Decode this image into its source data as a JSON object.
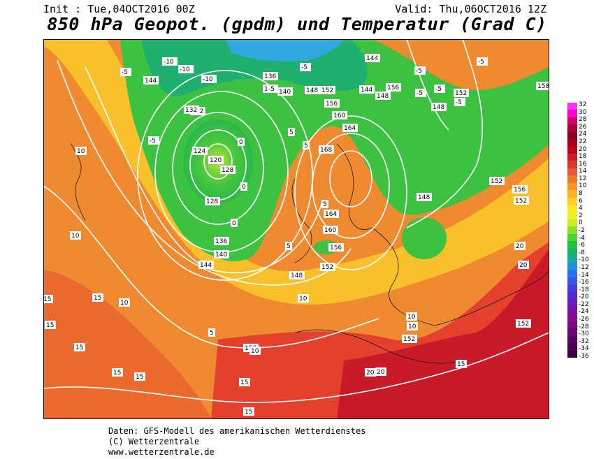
{
  "header": {
    "init": "Init : Tue,04OCT2016 00Z",
    "valid": "Valid: Thu,06OCT2016 12Z",
    "title": "850 hPa Geopot. (gpdm) und Temperatur (Grad C)"
  },
  "colorbar": {
    "labels": [
      "32",
      "30",
      "28",
      "26",
      "24",
      "22",
      "20",
      "18",
      "16",
      "14",
      "12",
      "10",
      "8",
      "6",
      "4",
      "2",
      "0",
      "-2",
      "-4",
      "-6",
      "-8",
      "-10",
      "-12",
      "-14",
      "-16",
      "-18",
      "-20",
      "-22",
      "-24",
      "-26",
      "-28",
      "-30",
      "-32",
      "-34",
      "-36"
    ],
    "colors": [
      "#ff33ff",
      "#ff00cc",
      "#d4006e",
      "#a8003c",
      "#8a0016",
      "#a3001c",
      "#bb0a1e",
      "#cc1e28",
      "#d93a30",
      "#e55a34",
      "#ee7a30",
      "#f5982c",
      "#f8b52a",
      "#fbd12a",
      "#ffe82a",
      "#f0f02a",
      "#c8ec2c",
      "#8ee030",
      "#4cd038",
      "#26c23c",
      "#1bb368",
      "#1aa8a0",
      "#1b8fd8",
      "#2870f0",
      "#3a56e8",
      "#4a3ae0",
      "#5a28cc",
      "#6c1cb8",
      "#7c12a4",
      "#8a0c90",
      "#7a0a80",
      "#6a0870",
      "#5a0660",
      "#4a0450",
      "#3a0240"
    ]
  },
  "map_labels": {
    "geopotential": [
      {
        "text": "128"
      },
      {
        "text": "132"
      },
      {
        "text": "136"
      },
      {
        "text": "144"
      },
      {
        "text": "120"
      },
      {
        "text": "124"
      },
      {
        "text": "132"
      },
      {
        "text": "136"
      },
      {
        "text": "140"
      },
      {
        "text": "144"
      },
      {
        "text": "148"
      },
      {
        "text": "152"
      },
      {
        "text": "156"
      },
      {
        "text": "160"
      },
      {
        "text": "164"
      },
      {
        "text": "168"
      },
      {
        "text": "164"
      },
      {
        "text": "160"
      },
      {
        "text": "156"
      },
      {
        "text": "152"
      },
      {
        "text": "148"
      },
      {
        "text": "144"
      },
      {
        "text": "148"
      },
      {
        "text": "152"
      },
      {
        "text": "156"
      },
      {
        "text": "158"
      },
      {
        "text": "148"
      },
      {
        "text": "152"
      },
      {
        "text": "152"
      },
      {
        "text": "152"
      },
      {
        "text": "152"
      },
      {
        "text": "156"
      },
      {
        "text": "140"
      },
      {
        "text": "136"
      },
      {
        "text": "144"
      },
      {
        "text": "152"
      },
      {
        "text": "148"
      },
      {
        "text": "128"
      }
    ],
    "temperature": [
      {
        "text": "-10"
      },
      {
        "text": "-10"
      },
      {
        "text": "-10"
      },
      {
        "text": "-5"
      },
      {
        "text": "-5"
      },
      {
        "text": "-5"
      },
      {
        "text": "-5"
      },
      {
        "text": "-5"
      },
      {
        "text": "-5"
      },
      {
        "text": "-5"
      },
      {
        "text": "-5"
      },
      {
        "text": "-5"
      },
      {
        "text": "0"
      },
      {
        "text": "0"
      },
      {
        "text": "0"
      },
      {
        "text": "5"
      },
      {
        "text": "5"
      },
      {
        "text": "5"
      },
      {
        "text": "5"
      },
      {
        "text": "10"
      },
      {
        "text": "10"
      },
      {
        "text": "10"
      },
      {
        "text": "10"
      },
      {
        "text": "10"
      },
      {
        "text": "10"
      },
      {
        "text": "15"
      },
      {
        "text": "15"
      },
      {
        "text": "15"
      },
      {
        "text": "15"
      },
      {
        "text": "15"
      },
      {
        "text": "15"
      },
      {
        "text": "15"
      },
      {
        "text": "15"
      },
      {
        "text": "15"
      },
      {
        "text": "20"
      },
      {
        "text": "20"
      },
      {
        "text": "20"
      },
      {
        "text": "20"
      },
      {
        "text": "10"
      },
      {
        "text": "5"
      }
    ]
  },
  "footer": {
    "line1": "Daten: GFS-Modell des amerikanischen Wetterdienstes",
    "line2": "(C) Wetterzentrale",
    "line3": "www.wetterzentrale.de"
  }
}
